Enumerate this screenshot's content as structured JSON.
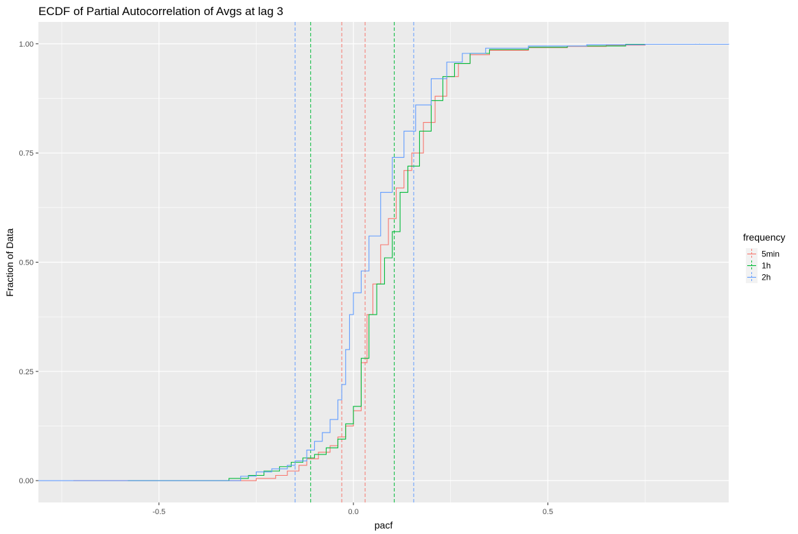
{
  "chart_data": {
    "type": "line",
    "subtype": "ecdf-step",
    "title": "ECDF of Partial Autocorrelation of Avgs at lag 3",
    "xlabel": "pacf",
    "ylabel": "Fraction of Data",
    "xlim": [
      -0.81,
      0.965
    ],
    "ylim": [
      -0.05,
      1.05
    ],
    "xticks": [
      -0.5,
      0.0,
      0.5
    ],
    "xtick_labels": [
      "-0.5",
      "0.0",
      "0.5"
    ],
    "yticks": [
      0.0,
      0.25,
      0.5,
      0.75,
      1.0
    ],
    "ytick_labels": [
      "0.00",
      "0.25",
      "0.50",
      "0.75",
      "1.00"
    ],
    "grid": true,
    "background": "#ebebeb",
    "legend": {
      "title": "frequency",
      "placement": "right",
      "entries": [
        "5min",
        "1h",
        "2h"
      ]
    },
    "series": [
      {
        "name": "5min",
        "color": "#f8766d",
        "points": [
          [
            -0.72,
            0.0
          ],
          [
            -0.31,
            0.0
          ],
          [
            -0.25,
            0.005
          ],
          [
            -0.2,
            0.012
          ],
          [
            -0.17,
            0.022
          ],
          [
            -0.14,
            0.035
          ],
          [
            -0.12,
            0.05
          ],
          [
            -0.09,
            0.065
          ],
          [
            -0.06,
            0.08
          ],
          [
            -0.04,
            0.1
          ],
          [
            -0.02,
            0.125
          ],
          [
            0.0,
            0.16
          ],
          [
            0.02,
            0.27
          ],
          [
            0.035,
            0.38
          ],
          [
            0.05,
            0.45
          ],
          [
            0.07,
            0.54
          ],
          [
            0.09,
            0.6
          ],
          [
            0.11,
            0.67
          ],
          [
            0.13,
            0.71
          ],
          [
            0.15,
            0.75
          ],
          [
            0.18,
            0.82
          ],
          [
            0.21,
            0.88
          ],
          [
            0.24,
            0.925
          ],
          [
            0.27,
            0.955
          ],
          [
            0.3,
            0.975
          ],
          [
            0.35,
            0.985
          ],
          [
            0.45,
            0.991
          ],
          [
            0.55,
            0.994
          ],
          [
            0.65,
            0.997
          ],
          [
            0.75,
            0.999
          ],
          [
            0.88,
            1.0
          ]
        ],
        "vlines": [
          -0.03,
          0.03
        ]
      },
      {
        "name": "1h",
        "color": "#00ba38",
        "points": [
          [
            -0.58,
            0.0
          ],
          [
            -0.4,
            0.0
          ],
          [
            -0.32,
            0.005
          ],
          [
            -0.27,
            0.012
          ],
          [
            -0.23,
            0.022
          ],
          [
            -0.19,
            0.032
          ],
          [
            -0.16,
            0.042
          ],
          [
            -0.13,
            0.052
          ],
          [
            -0.1,
            0.06
          ],
          [
            -0.07,
            0.075
          ],
          [
            -0.04,
            0.095
          ],
          [
            -0.02,
            0.13
          ],
          [
            0.0,
            0.17
          ],
          [
            0.02,
            0.28
          ],
          [
            0.04,
            0.38
          ],
          [
            0.06,
            0.45
          ],
          [
            0.08,
            0.51
          ],
          [
            0.1,
            0.57
          ],
          [
            0.12,
            0.66
          ],
          [
            0.14,
            0.72
          ],
          [
            0.17,
            0.8
          ],
          [
            0.2,
            0.87
          ],
          [
            0.23,
            0.925
          ],
          [
            0.26,
            0.955
          ],
          [
            0.3,
            0.978
          ],
          [
            0.35,
            0.987
          ],
          [
            0.45,
            0.992
          ],
          [
            0.55,
            0.995
          ],
          [
            0.7,
            0.999
          ],
          [
            0.89,
            1.0
          ]
        ],
        "vlines": [
          -0.11,
          0.105
        ]
      },
      {
        "name": "2h",
        "color": "#619cff",
        "points": [
          [
            -0.81,
            0.0
          ],
          [
            -0.32,
            0.0
          ],
          [
            -0.29,
            0.01
          ],
          [
            -0.25,
            0.02
          ],
          [
            -0.21,
            0.027
          ],
          [
            -0.17,
            0.035
          ],
          [
            -0.15,
            0.045
          ],
          [
            -0.12,
            0.07
          ],
          [
            -0.1,
            0.09
          ],
          [
            -0.08,
            0.11
          ],
          [
            -0.06,
            0.14
          ],
          [
            -0.04,
            0.185
          ],
          [
            -0.03,
            0.22
          ],
          [
            -0.02,
            0.3
          ],
          [
            -0.01,
            0.38
          ],
          [
            0.0,
            0.43
          ],
          [
            0.02,
            0.48
          ],
          [
            0.04,
            0.56
          ],
          [
            0.07,
            0.66
          ],
          [
            0.1,
            0.74
          ],
          [
            0.13,
            0.8
          ],
          [
            0.16,
            0.86
          ],
          [
            0.2,
            0.92
          ],
          [
            0.24,
            0.958
          ],
          [
            0.28,
            0.978
          ],
          [
            0.34,
            0.99
          ],
          [
            0.45,
            0.995
          ],
          [
            0.6,
            0.998
          ],
          [
            0.75,
            0.999
          ],
          [
            0.965,
            1.0
          ]
        ],
        "vlines": [
          -0.15,
          0.155
        ]
      }
    ]
  }
}
